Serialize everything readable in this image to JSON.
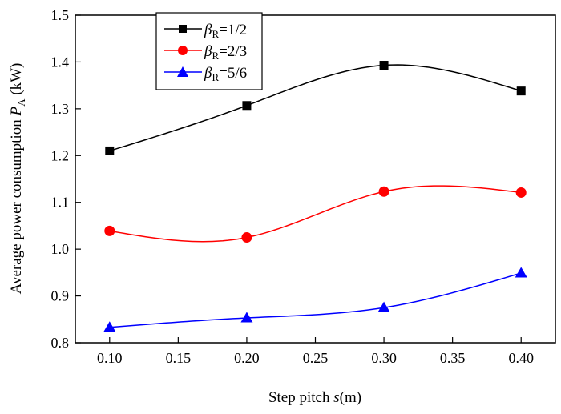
{
  "chart_data": {
    "type": "line",
    "xlabel": "Step pitch s(m)",
    "ylabel": "Average power consumption PA (kW)",
    "xlim": [
      0.075,
      0.425
    ],
    "ylim": [
      0.8,
      1.5
    ],
    "x": [
      0.1,
      0.2,
      0.3,
      0.4
    ],
    "x_ticks": [
      "0.10",
      "0.15",
      "0.20",
      "0.25",
      "0.30",
      "0.35",
      "0.40"
    ],
    "y_ticks": [
      "0.8",
      "0.9",
      "1.0",
      "1.1",
      "1.2",
      "1.3",
      "1.4",
      "1.5"
    ],
    "grid": false,
    "legend_position": "top-left",
    "series": [
      {
        "name": "βR=1/2",
        "color": "#000000",
        "marker": "square",
        "values": [
          1.21,
          1.307,
          1.393,
          1.338
        ]
      },
      {
        "name": "βR=2/3",
        "color": "#ff0000",
        "marker": "circle",
        "values": [
          1.039,
          1.025,
          1.123,
          1.121
        ]
      },
      {
        "name": "βR=5/6",
        "color": "#0000ff",
        "marker": "triangle",
        "values": [
          0.833,
          0.853,
          0.875,
          0.949
        ]
      }
    ]
  },
  "axes": {
    "x_title_main": "Step pitch ",
    "x_title_var": "s",
    "x_title_unit": "(m)",
    "y_title_main": "Average power consumption ",
    "y_title_var": "P",
    "y_title_sub": "A",
    "y_title_unit": " (kW)"
  },
  "legend": {
    "symbol": "β",
    "subscript": "R",
    "entries": [
      "=1/2",
      "=2/3",
      "=5/6"
    ]
  }
}
